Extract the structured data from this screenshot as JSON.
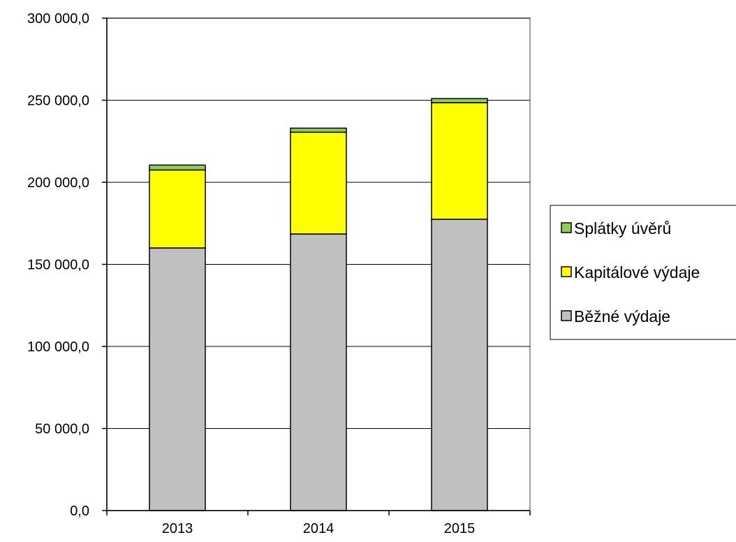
{
  "chart_data": {
    "type": "bar",
    "stacked": true,
    "categories": [
      "2013",
      "2014",
      "2015"
    ],
    "series": [
      {
        "name": "Běžné výdaje",
        "values": [
          160000,
          168500,
          177500
        ],
        "color": "#c0c0c0"
      },
      {
        "name": "Kapitálové výdaje",
        "values": [
          47500,
          62000,
          71000
        ],
        "color": "#ffff00"
      },
      {
        "name": "Splátky úvěrů",
        "values": [
          3000,
          2500,
          2500
        ],
        "color": "#8fce4f"
      }
    ],
    "ylim": [
      0,
      300000
    ],
    "y_ticks": [
      {
        "value": 0,
        "label": "0,0"
      },
      {
        "value": 50000,
        "label": "50 000,0"
      },
      {
        "value": 100000,
        "label": "100 000,0"
      },
      {
        "value": 150000,
        "label": "150 000,0"
      },
      {
        "value": 200000,
        "label": "200 000,0"
      },
      {
        "value": 250000,
        "label": "250 000,0"
      },
      {
        "value": 300000,
        "label": "300 000,0"
      }
    ],
    "grid": true,
    "legend_position": "right",
    "legend_order": [
      "Splátky úvěrů",
      "Kapitálové výdaje",
      "Běžné výdaje"
    ]
  }
}
